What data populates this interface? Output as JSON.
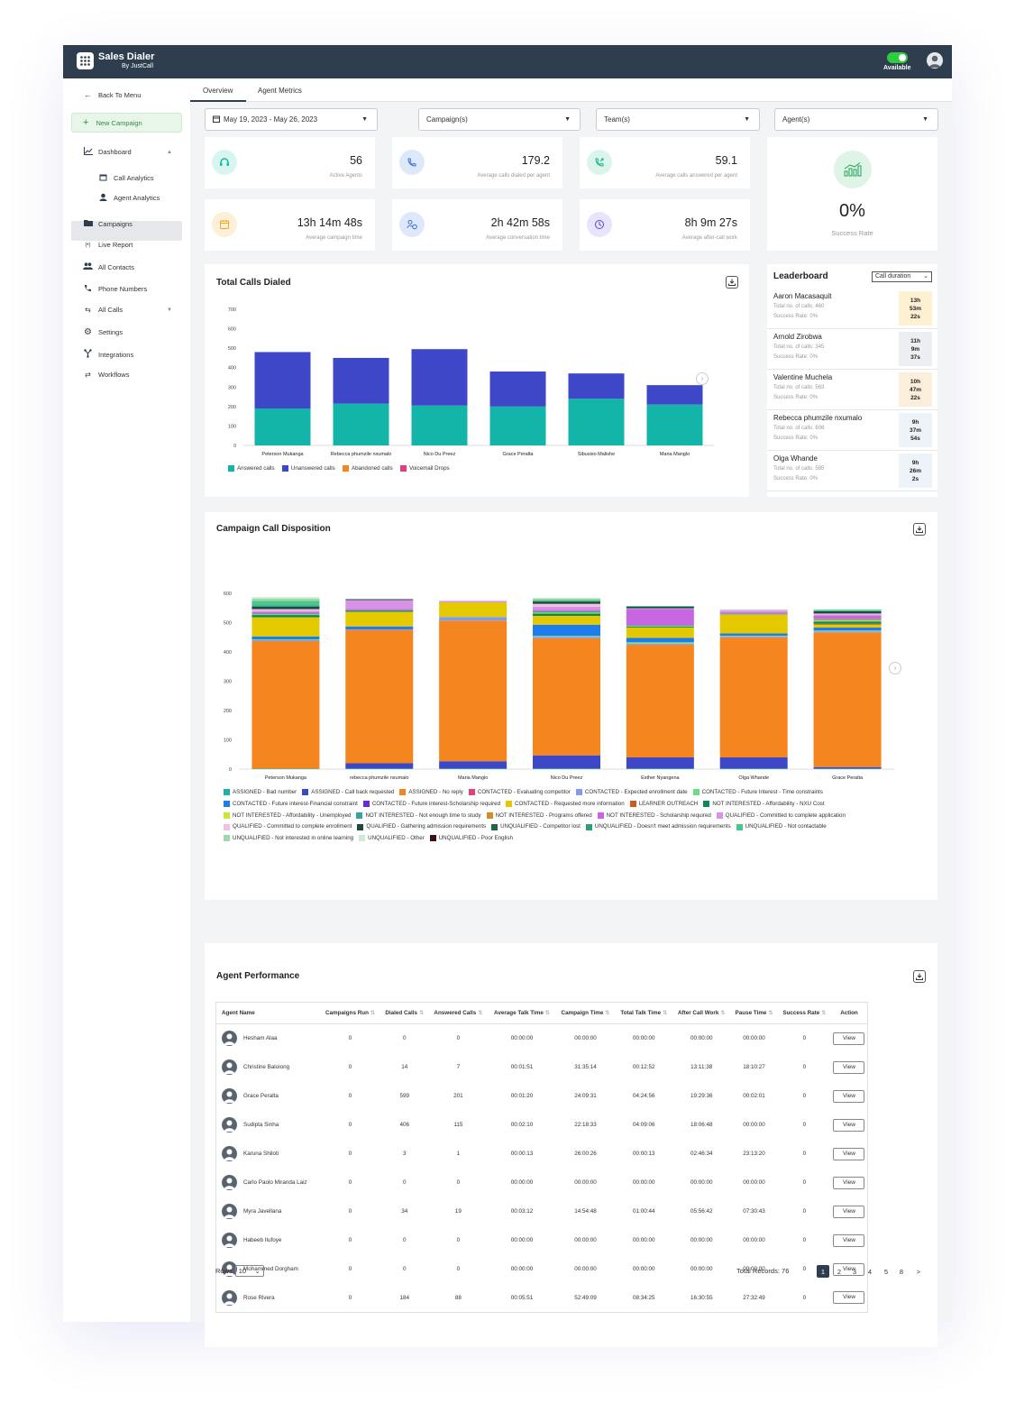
{
  "app": {
    "title": "Sales Dialer",
    "subtitle": "By JustCall",
    "status": "Available"
  },
  "colors": {
    "topbar": "#2f3e4e",
    "accent_green": "#2ecc40",
    "answered": "#13b5a8",
    "unanswered": "#3f47c9",
    "abandoned": "#f5861f",
    "voicemail": "#e23d80"
  },
  "sidebar": {
    "back": "Back To Menu",
    "new_campaign": "New Campaign",
    "dashboard": "Dashboard",
    "call_analytics": "Call Analytics",
    "agent_analytics": "Agent Analytics",
    "campaigns": "Campaigns",
    "live_report": "Live Report",
    "all_contacts": "All Contacts",
    "phone_numbers": "Phone Numbers",
    "all_calls": "All Calls",
    "settings": "Settings",
    "integrations": "Integrations",
    "workflows": "Workflows"
  },
  "tabs": {
    "overview": "Overview",
    "agent_metrics": "Agent Metrics"
  },
  "filters": {
    "date": "May 19, 2023 - May 26, 2023",
    "campaign": "Campaign(s)",
    "team": "Team(s)",
    "agent": "Agent(s)"
  },
  "stats": {
    "active_agents": {
      "value": "56",
      "label": "Active Agents"
    },
    "avg_dialed": {
      "value": "179.2",
      "label": "Average calls dialed per agent"
    },
    "avg_answered": {
      "value": "59.1",
      "label": "Average calls answered per agent"
    },
    "campaign_time": {
      "value": "13h 14m 48s",
      "label": "Average campaign time"
    },
    "conversation_time": {
      "value": "2h 42m 58s",
      "label": "Average conversation time"
    },
    "after_call": {
      "value": "8h 9m 27s",
      "label": "Average after-call work"
    },
    "success_rate": {
      "value": "0%",
      "label": "Success Rate"
    }
  },
  "leaderboard": {
    "title": "Leaderboard",
    "sort": "Call duration",
    "rows": [
      {
        "name": "Aaron Macasaquit",
        "calls": "Total no. of calls: 460",
        "rate": "Success Rate: 0%",
        "h": "13h",
        "m": "53m",
        "s": "22s",
        "bg": "#fdf1d2"
      },
      {
        "name": "Arnold Zirobwa",
        "calls": "Total no. of calls: 345",
        "rate": "Success Rate: 0%",
        "h": "11h",
        "m": "9m",
        "s": "37s",
        "bg": "#eceef1"
      },
      {
        "name": "Valentine Muchela",
        "calls": "Total no. of calls: 563",
        "rate": "Success Rate: 0%",
        "h": "10h",
        "m": "47m",
        "s": "22s",
        "bg": "#fbeedb"
      },
      {
        "name": "Rebecca phumzile nxumalo",
        "calls": "Total no. of calls: 606",
        "rate": "Success Rate: 0%",
        "h": "9h",
        "m": "37m",
        "s": "54s",
        "bg": "#eef3f9"
      },
      {
        "name": "Olga Whande",
        "calls": "Total no. of calls: 585",
        "rate": "Success Rate: 0%",
        "h": "9h",
        "m": "26m",
        "s": "2s",
        "bg": "#eef3f9"
      }
    ]
  },
  "total_calls": {
    "title": "Total Calls Dialed"
  },
  "disposition": {
    "title": "Campaign Call Disposition"
  },
  "chart_data": [
    {
      "type": "bar",
      "title": "Total Calls Dialed",
      "stacked": true,
      "categories": [
        "Peterson Mukanga",
        "Rebecca phumzile nxumalo",
        "Nico Du Preez",
        "Grace Peralta",
        "Sibusiso Malishe",
        "Maria Manglo"
      ],
      "ylim": [
        0,
        700
      ],
      "yticks": [
        0,
        100,
        200,
        300,
        400,
        500,
        600,
        700
      ],
      "series": [
        {
          "name": "Answered calls",
          "color": "#13b5a8",
          "values": [
            190,
            215,
            205,
            200,
            240,
            210
          ]
        },
        {
          "name": "Unanswered calls",
          "color": "#3f47c9",
          "values": [
            290,
            235,
            290,
            180,
            130,
            100
          ]
        },
        {
          "name": "Abandoned calls",
          "color": "#f5861f",
          "values": [
            0,
            0,
            0,
            0,
            0,
            0
          ]
        },
        {
          "name": "Voicemail Drops",
          "color": "#e23d80",
          "values": [
            0,
            0,
            0,
            0,
            0,
            0
          ]
        }
      ]
    },
    {
      "type": "bar",
      "title": "Campaign Call Disposition",
      "stacked": true,
      "categories": [
        "Peterson Mukanga",
        "rebecca phumzile nxumalo",
        "Maria Manglo",
        "Nico Du Preez",
        "Esther Nyangena",
        "Olga Whande",
        "Grace Peralta"
      ],
      "ylim": [
        0,
        600
      ],
      "yticks": [
        0,
        100,
        200,
        300,
        400,
        500,
        600
      ],
      "series": [
        {
          "name": "ASSIGNED - Bad number",
          "color": "#1eb39e",
          "values": [
            2,
            2,
            2,
            2,
            2,
            2,
            2
          ]
        },
        {
          "name": "ASSIGNED - Call back requested",
          "color": "#3f47c9",
          "values": [
            0,
            18,
            25,
            45,
            38,
            38,
            5
          ]
        },
        {
          "name": "ASSIGNED - No reply",
          "color": "#f5861f",
          "values": [
            435,
            455,
            480,
            400,
            385,
            410,
            460
          ]
        },
        {
          "name": "CONTACTED - Evaluating competitor",
          "color": "#e6407a",
          "values": [
            0,
            0,
            0,
            0,
            0,
            0,
            0
          ]
        },
        {
          "name": "CONTACTED - Expected enrollment date",
          "color": "#7e9cf0",
          "values": [
            3,
            2,
            12,
            5,
            3,
            3,
            3
          ]
        },
        {
          "name": "CONTACTED - Future Interest - Time constraints",
          "color": "#6fdc84",
          "values": [
            3,
            0,
            0,
            3,
            5,
            2,
            3
          ]
        },
        {
          "name": "CONTACTED - Future interest-Financial constraint",
          "color": "#1f7cec",
          "values": [
            10,
            10,
            0,
            38,
            15,
            8,
            10
          ]
        },
        {
          "name": "CONTACTED - Future interest-Scholarship required",
          "color": "#6b2ad8",
          "values": [
            0,
            0,
            0,
            0,
            0,
            0,
            0
          ]
        },
        {
          "name": "CONTACTED - Requested more information",
          "color": "#e4c900",
          "values": [
            65,
            50,
            50,
            30,
            35,
            65,
            10
          ]
        },
        {
          "name": "LEARNER OUTREACH",
          "color": "#cf5a1e",
          "values": [
            0,
            0,
            0,
            0,
            0,
            0,
            3
          ]
        },
        {
          "name": "NOT INTERESTED - Affordability - NXU Cost",
          "color": "#0c8a57",
          "values": [
            8,
            3,
            0,
            8,
            3,
            0,
            8
          ]
        },
        {
          "name": "NOT INTERESTED - Affordability - Unemployed",
          "color": "#c9e833",
          "values": [
            2,
            0,
            0,
            3,
            2,
            0,
            3
          ]
        },
        {
          "name": "NOT INTERESTED - Not enough time to study",
          "color": "#36a59c",
          "values": [
            3,
            2,
            0,
            5,
            3,
            2,
            3
          ]
        },
        {
          "name": "NOT INTERESTED - Programs offered",
          "color": "#d48a2e",
          "values": [
            0,
            0,
            0,
            0,
            0,
            0,
            3
          ]
        },
        {
          "name": "NOT INTERESTED - Scholarship required",
          "color": "#c766e0",
          "values": [
            5,
            5,
            0,
            5,
            55,
            5,
            10
          ]
        },
        {
          "name": "QUALIFIED - Committed to complete application",
          "color": "#d993e6",
          "values": [
            5,
            30,
            5,
            10,
            3,
            5,
            5
          ]
        },
        {
          "name": "QUALIFIED - Committed to complete enrollment",
          "color": "#f2bfe6",
          "values": [
            5,
            0,
            0,
            10,
            0,
            3,
            3
          ]
        },
        {
          "name": "QUALIFIED - Gathering admission requirements",
          "color": "#1d4a3a",
          "values": [
            8,
            3,
            0,
            8,
            5,
            0,
            8
          ]
        },
        {
          "name": "UNQUALIFIED - Competitor lost",
          "color": "#1e6b43",
          "values": [
            0,
            0,
            0,
            0,
            0,
            0,
            0
          ]
        },
        {
          "name": "UNQUALIFIED - Doesn't meet admission requirements",
          "color": "#2f9e74",
          "values": [
            5,
            0,
            0,
            0,
            0,
            0,
            0
          ]
        },
        {
          "name": "UNQUALIFIED - Not contactable",
          "color": "#47c78d",
          "values": [
            15,
            0,
            0,
            5,
            3,
            0,
            5
          ]
        },
        {
          "name": "UNQUALIFIED - Not interested in online learning",
          "color": "#9ed9a8",
          "values": [
            8,
            0,
            0,
            5,
            0,
            2,
            0
          ]
        },
        {
          "name": "UNQUALIFIED - Other",
          "color": "#cdebd2",
          "values": [
            5,
            0,
            0,
            3,
            0,
            0,
            0
          ]
        },
        {
          "name": "UNQUALIFIED - Poor English",
          "color": "#3b1111",
          "values": [
            0,
            0,
            0,
            0,
            0,
            0,
            0
          ]
        }
      ]
    }
  ],
  "perf": {
    "title": "Agent Performance",
    "headers": [
      "Agent Name",
      "Campaigns Run",
      "Dialed Calls",
      "Answered Calls",
      "Average Talk Time",
      "Campaign Time",
      "Total Talk Time",
      "After Call Work",
      "Pause Time",
      "Success Rate",
      "Action"
    ],
    "rows": [
      [
        "Hesham Alaa",
        "0",
        "0",
        "0",
        "00:00:00",
        "00:00:00",
        "00:00:00",
        "00:00:00",
        "00:00:00",
        "0",
        "View"
      ],
      [
        "Christine Baloiong",
        "0",
        "14",
        "7",
        "00:01:51",
        "31:35:14",
        "00:12:52",
        "13:11:38",
        "18:10:27",
        "0",
        "View"
      ],
      [
        "Grace Peralta",
        "0",
        "599",
        "201",
        "00:01:20",
        "24:09:31",
        "04:24:56",
        "19:29:36",
        "00:02:01",
        "0",
        "View"
      ],
      [
        "Sudipta Sinha",
        "0",
        "406",
        "115",
        "00:02:10",
        "22:18:33",
        "04:09:06",
        "18:06:48",
        "00:00:00",
        "0",
        "View"
      ],
      [
        "Karuna Shiloti",
        "0",
        "3",
        "1",
        "00:00:13",
        "26:00:26",
        "00:00:13",
        "02:46:34",
        "23:13:20",
        "0",
        "View"
      ],
      [
        "Carlo Paolo Miranda Laiz",
        "0",
        "0",
        "0",
        "00:00:00",
        "00:00:00",
        "00:00:00",
        "00:00:00",
        "00:00:00",
        "0",
        "View"
      ],
      [
        "Myra Javellana",
        "0",
        "34",
        "19",
        "00:03:12",
        "14:54:48",
        "01:00:44",
        "05:56:42",
        "07:30:43",
        "0",
        "View"
      ],
      [
        "Habeeb Ilufoye",
        "0",
        "0",
        "0",
        "00:00:00",
        "00:00:00",
        "00:00:00",
        "00:00:00",
        "00:00:00",
        "0",
        "View"
      ],
      [
        "Mohammed Dorgham",
        "0",
        "0",
        "0",
        "00:00:00",
        "00:00:00",
        "00:00:00",
        "00:00:00",
        "00:00:00",
        "0",
        "View"
      ],
      [
        "Rose Rivera",
        "0",
        "184",
        "88",
        "00:05:51",
        "52:49:09",
        "08:34:25",
        "16:30:55",
        "27:32:49",
        "0",
        "View"
      ]
    ],
    "rows_label": "Rows",
    "rows_value": "10",
    "total_records": "Total Records: 76",
    "pages": [
      "1",
      "2",
      "3",
      "4",
      "5",
      "8",
      ">"
    ]
  }
}
